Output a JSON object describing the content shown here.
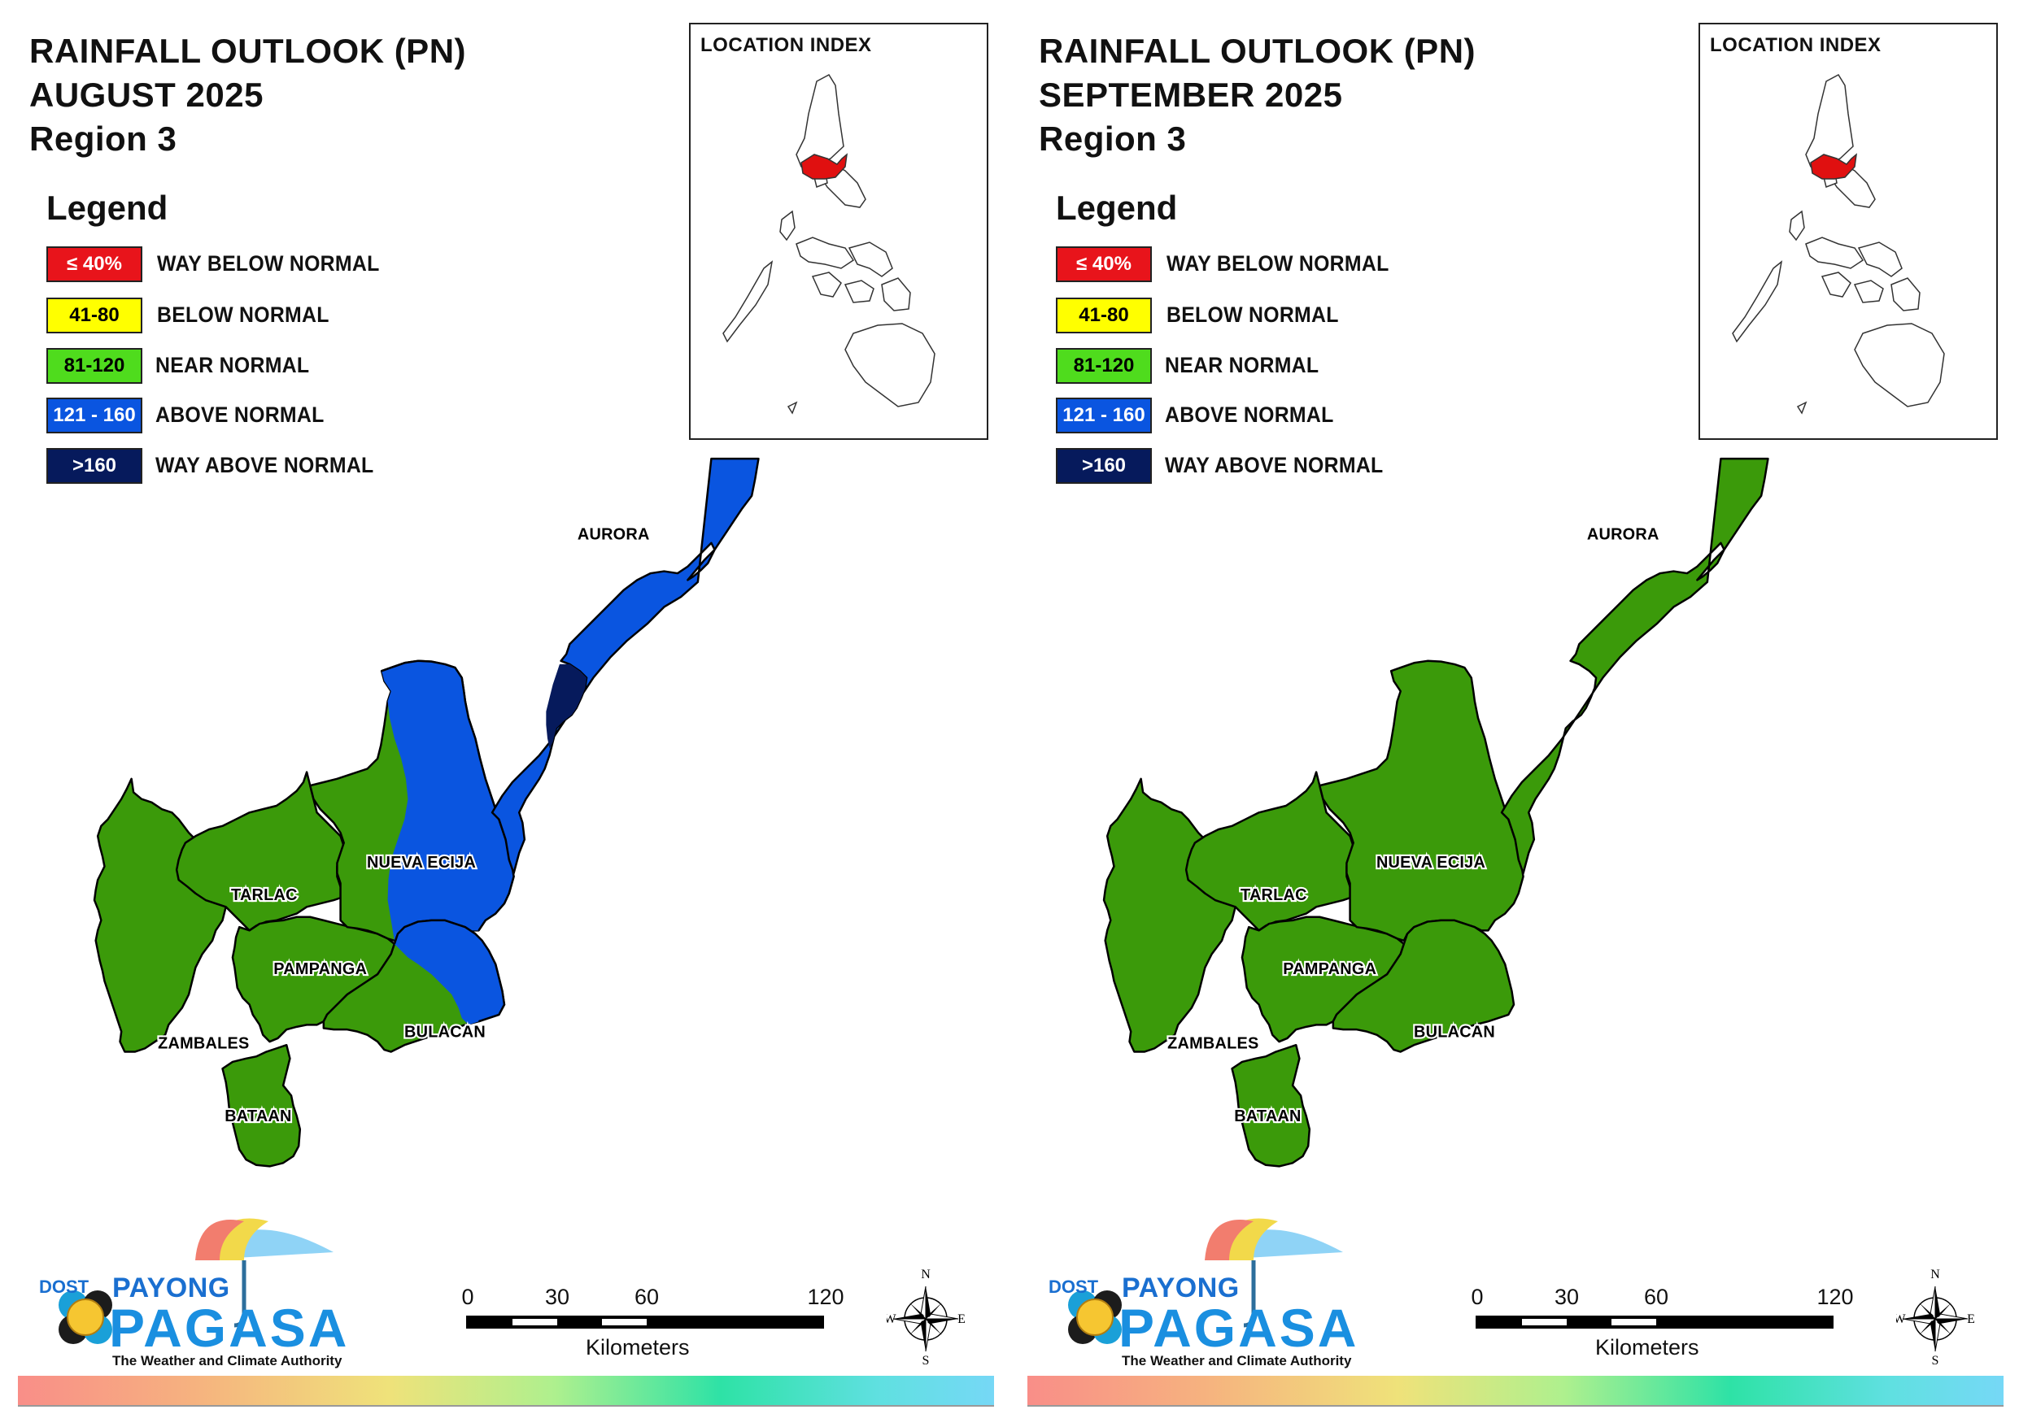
{
  "panels": [
    {
      "title_line1": "RAINFALL OUTLOOK (PN)",
      "title_line2": "AUGUST 2025",
      "title_line3": "Region 3",
      "legend_heading": "Legend",
      "inset_title": "LOCATION INDEX",
      "provinces": {
        "aurora": "AURORA",
        "nueva_ecija": "NUEVA ECIJA",
        "tarlac": "TARLAC",
        "pampanga": "PAMPANGA",
        "bulacan": "BULACAN",
        "zambales": "ZAMBALES",
        "bataan": "BATAAN"
      },
      "classification": {
        "zambales": "NEAR NORMAL",
        "bataan": "NEAR NORMAL",
        "tarlac": "NEAR NORMAL",
        "pampanga": "NEAR NORMAL",
        "nueva_ecija": "NEAR NORMAL / ABOVE NORMAL",
        "bulacan": "NEAR NORMAL / ABOVE NORMAL",
        "aurora": "ABOVE NORMAL / WAY ABOVE NORMAL"
      }
    },
    {
      "title_line1": "RAINFALL OUTLOOK (PN)",
      "title_line2": "SEPTEMBER 2025",
      "title_line3": "Region 3",
      "legend_heading": "Legend",
      "inset_title": "LOCATION INDEX",
      "provinces": {
        "aurora": "AURORA",
        "nueva_ecija": "NUEVA ECIJA",
        "tarlac": "TARLAC",
        "pampanga": "PAMPANGA",
        "bulacan": "BULACAN",
        "zambales": "ZAMBALES",
        "bataan": "BATAAN"
      },
      "classification": {
        "zambales": "NEAR NORMAL",
        "bataan": "NEAR NORMAL",
        "tarlac": "NEAR NORMAL",
        "pampanga": "NEAR NORMAL",
        "nueva_ecija": "NEAR NORMAL",
        "bulacan": "NEAR NORMAL",
        "aurora": "NEAR NORMAL"
      }
    }
  ],
  "legend": [
    {
      "range": "≤ 40%",
      "label": "WAY BELOW NORMAL",
      "color": "#e8141b",
      "text_color": "#ffffff"
    },
    {
      "range": "41-80",
      "label": "BELOW NORMAL",
      "color": "#ffff00",
      "text_color": "#000000"
    },
    {
      "range": "81-120",
      "label": "NEAR NORMAL",
      "color": "#4fdc1d",
      "text_color": "#000000"
    },
    {
      "range": "121 - 160",
      "label": "ABOVE NORMAL",
      "color": "#0a55e0",
      "text_color": "#ffffff"
    },
    {
      "range": ">160",
      "label": "WAY ABOVE NORMAL",
      "color": "#061a5c",
      "text_color": "#ffffff"
    }
  ],
  "map_colors": {
    "near_normal_fill": "#3b9a0a",
    "above_normal_fill": "#0a55e0",
    "way_above_normal_fill": "#061a5c",
    "highlight_region": "#e01010"
  },
  "scale_bar": {
    "ticks": [
      "0",
      "30",
      "60",
      "120"
    ],
    "unit": "Kilometers"
  },
  "compass": {
    "n": "N",
    "s": "S",
    "e": "E",
    "w": "W"
  },
  "branding": {
    "dost": "DOST",
    "payong": "PAYONG",
    "pagasa": "PAGASA",
    "tagline": "The Weather and Climate Authority"
  }
}
